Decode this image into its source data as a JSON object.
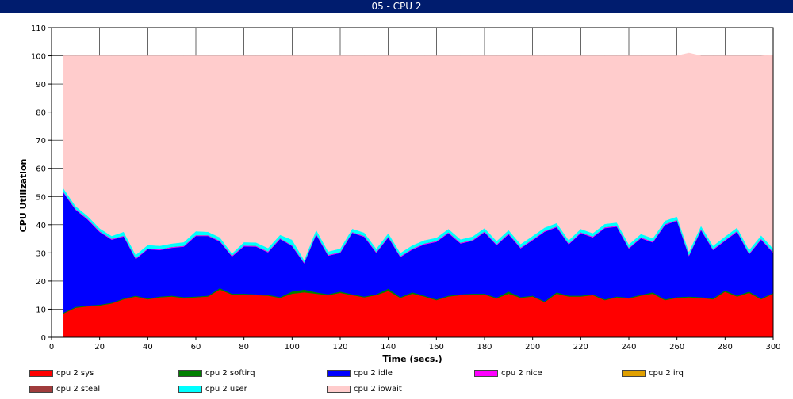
{
  "window": {
    "title": "05 - CPU 2"
  },
  "chart_data": {
    "type": "area",
    "stacked": true,
    "title": "05 - CPU 2",
    "xlabel": "Time (secs.)",
    "ylabel": "CPU Utilization",
    "xlim": [
      0,
      300
    ],
    "ylim": [
      0,
      110
    ],
    "xticks": [
      0,
      20,
      40,
      60,
      80,
      100,
      120,
      140,
      160,
      180,
      200,
      220,
      240,
      260,
      280,
      300
    ],
    "yticks": [
      0,
      10,
      20,
      30,
      40,
      50,
      60,
      70,
      80,
      90,
      100,
      110
    ],
    "grid": true,
    "legend_position": "bottom",
    "x": [
      5,
      10,
      15,
      20,
      25,
      30,
      35,
      40,
      45,
      50,
      55,
      60,
      65,
      70,
      75,
      80,
      85,
      90,
      95,
      100,
      105,
      110,
      115,
      120,
      125,
      130,
      135,
      140,
      145,
      150,
      155,
      160,
      165,
      170,
      175,
      180,
      185,
      190,
      195,
      200,
      205,
      210,
      215,
      220,
      225,
      230,
      235,
      240,
      245,
      250,
      255,
      260,
      265,
      270,
      275,
      280,
      285,
      290,
      295,
      300
    ],
    "series": [
      {
        "name": "cpu 2 sys",
        "color": "#ff0000",
        "values": [
          8.5,
          10.5,
          11,
          11.3,
          12,
          13.5,
          14.5,
          13.5,
          14.2,
          14.5,
          14,
          14.2,
          14.5,
          17,
          15.2,
          15.2,
          15,
          14.8,
          14,
          15.5,
          16,
          15.5,
          15,
          15.8,
          15,
          14.2,
          15,
          16.5,
          14,
          15.5,
          14.5,
          13.2,
          14.5,
          15,
          15.2,
          15.2,
          13.8,
          15.5,
          14,
          14.5,
          12.5,
          15.5,
          14.5,
          14.5,
          15,
          13.2,
          14.2,
          13.8,
          14.8,
          15.5,
          13.2,
          14,
          14.2,
          14,
          13.5,
          16.2,
          14.5,
          15.8,
          13.5,
          15.5
        ]
      },
      {
        "name": "cpu 2 softirq",
        "color": "#008000",
        "values": [
          0.3,
          0.3,
          0.3,
          0.3,
          0.3,
          0.3,
          0.3,
          0.3,
          0.3,
          0.3,
          0.3,
          0.3,
          0.3,
          0.5,
          0.3,
          0.3,
          0.3,
          0.3,
          0.3,
          0.8,
          1,
          0.5,
          0.3,
          0.5,
          0.3,
          0.3,
          0.3,
          0.8,
          0.3,
          0.5,
          0.3,
          0.3,
          0.3,
          0.3,
          0.3,
          0.3,
          0.3,
          0.8,
          0.3,
          0.3,
          0.3,
          0.5,
          0.3,
          0.3,
          0.3,
          0.3,
          0.3,
          0.3,
          0.3,
          0.5,
          0.3,
          0.3,
          0.3,
          0.3,
          0.3,
          0.5,
          0.3,
          0.5,
          0.3,
          0.3
        ]
      },
      {
        "name": "cpu 2 idle",
        "color": "#0000ff",
        "values": [
          42.5,
          34.5,
          30.5,
          25.8,
          22.4,
          22,
          13,
          17.5,
          16.5,
          17,
          17.9,
          21.5,
          21.2,
          16.5,
          13.2,
          16.8,
          16.9,
          15.1,
          20.6,
          16.1,
          9.3,
          20.5,
          13.7,
          13.7,
          21.8,
          21.2,
          14.7,
          18.2,
          14.2,
          15.2,
          18.2,
          20.4,
          22.2,
          18,
          18.8,
          21.8,
          18.6,
          20.3,
          17.3,
          19.7,
          24.7,
          23.1,
          18.2,
          22.2,
          20.2,
          25.3,
          24.8,
          17.4,
          20.1,
          17.7,
          26.4,
          27.1,
          14.4,
          23.8,
          17.2,
          17.6,
          22.7,
          13.2,
          20.9,
          14.2
        ]
      },
      {
        "name": "cpu 2 nice",
        "color": "#ff00ff",
        "values": [
          0.3,
          0.3,
          0.3,
          0.3,
          0.3,
          0.3,
          0.3,
          0.3,
          0.3,
          0.3,
          0.3,
          0.3,
          0.3,
          0.3,
          0.3,
          0.3,
          0.3,
          0.3,
          0.3,
          0.3,
          0.3,
          0.3,
          0.3,
          0.3,
          0.3,
          0.3,
          0.3,
          0.3,
          0.3,
          0.3,
          0.3,
          0.3,
          0.3,
          0.3,
          0.3,
          0.3,
          0.3,
          0.3,
          0.3,
          0.3,
          0.3,
          0.3,
          0.3,
          0.3,
          0.3,
          0.3,
          0.3,
          0.3,
          0.3,
          0.3,
          0.3,
          0.3,
          0.3,
          0.3,
          0.3,
          0.3,
          0.3,
          0.3,
          0.3,
          0.3
        ]
      },
      {
        "name": "cpu 2 irq",
        "color": "#e0a000",
        "values": [
          0,
          0,
          0,
          0,
          0,
          0,
          0,
          0,
          0,
          0,
          0,
          0,
          0,
          0,
          0,
          0,
          0,
          0,
          0,
          0,
          0,
          0,
          0,
          0,
          0,
          0,
          0,
          0,
          0,
          0,
          0,
          0,
          0,
          0,
          0,
          0,
          0,
          0,
          0,
          0,
          0,
          0,
          0,
          0,
          0,
          0,
          0,
          0,
          0,
          0,
          0,
          0,
          0,
          0,
          0,
          0,
          0,
          0,
          0,
          0
        ]
      },
      {
        "name": "cpu 2 steal",
        "color": "#a03c3c",
        "values": [
          0,
          0,
          0,
          0,
          0,
          0,
          0,
          0,
          0,
          0,
          0,
          0,
          0,
          0,
          0,
          0,
          0,
          0,
          0,
          0,
          0,
          0,
          0,
          0,
          0,
          0,
          0,
          0,
          0,
          0,
          0,
          0,
          0,
          0,
          0,
          0,
          0,
          0,
          0,
          0,
          0,
          0,
          0,
          0,
          0,
          0,
          0,
          0,
          0,
          0,
          0,
          0,
          0,
          0,
          0,
          0,
          0,
          0,
          0,
          0
        ]
      },
      {
        "name": "cpu 2 user",
        "color": "#00ffff",
        "values": [
          1.2,
          1,
          1,
          1,
          1,
          1.4,
          1.2,
          1.2,
          1.2,
          1.2,
          1.3,
          1.4,
          1.2,
          1.2,
          0.8,
          1.2,
          1.2,
          1.2,
          1.2,
          2,
          0.9,
          1.4,
          1.2,
          1.2,
          1.2,
          1.2,
          1.2,
          1.2,
          1.2,
          1.2,
          1.2,
          1.2,
          1.2,
          1.2,
          1.2,
          1.2,
          1.2,
          1.2,
          1.2,
          1.2,
          1.2,
          1.2,
          1.2,
          1.2,
          1.2,
          1.2,
          1.2,
          1.2,
          1.2,
          1.2,
          1.2,
          1.2,
          1.2,
          1.2,
          1.2,
          1.2,
          1.2,
          1.2,
          1.2,
          1.2
        ]
      },
      {
        "name": "cpu 2 iowait",
        "color": "#ffcccc",
        "values": [
          47.2,
          53.4,
          56.9,
          61.3,
          64,
          62.5,
          70.7,
          67.2,
          67.5,
          66.7,
          66.2,
          62.3,
          62.5,
          64.5,
          70.2,
          66.2,
          66.3,
          68.3,
          63.6,
          65.3,
          72.5,
          61.8,
          69.5,
          68.5,
          61.4,
          62.8,
          68.5,
          63,
          70,
          67.3,
          65.5,
          64.6,
          61.5,
          65.2,
          64.2,
          61.2,
          65.8,
          61.9,
          66.9,
          64,
          61,
          59.4,
          65.5,
          61.5,
          63,
          59.7,
          59.2,
          67,
          63.3,
          64.8,
          58.6,
          57.1,
          70.6,
          60.4,
          67.5,
          64.2,
          61,
          69,
          63.8,
          68.7
        ]
      }
    ]
  }
}
